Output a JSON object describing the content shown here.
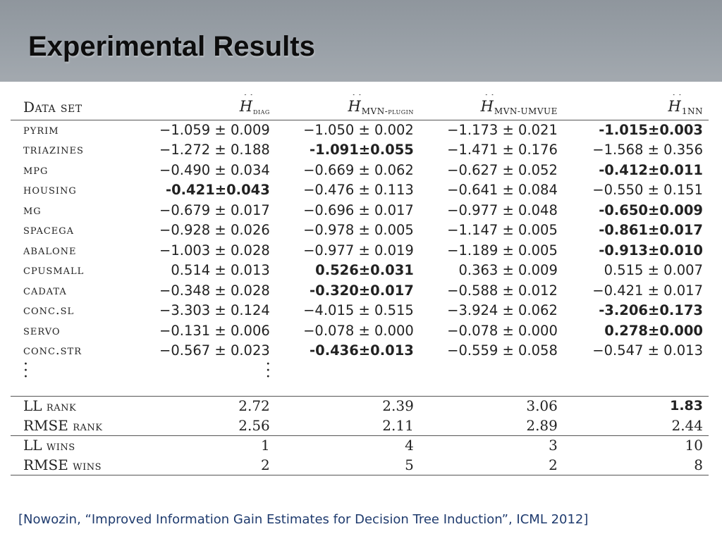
{
  "slide": {
    "title": "Experimental Results",
    "citation": "[Nowozin, “Improved Information Gain Estimates for Decision Tree Induction”, ICML 2012]"
  },
  "table": {
    "header": {
      "dataset": "Data set",
      "cols": [
        {
          "symbol": "H",
          "sub": "diag"
        },
        {
          "symbol": "H",
          "sub": "MVN-plugin"
        },
        {
          "symbol": "H",
          "sub": "MVN-UMVUE"
        },
        {
          "symbol": "H",
          "sub": "1NN"
        }
      ]
    },
    "rows": [
      {
        "name": "pyrim",
        "cells": [
          {
            "v": "−1.059 ± 0.009",
            "bold": false
          },
          {
            "v": "−1.050 ± 0.002",
            "bold": false
          },
          {
            "v": "−1.173 ± 0.021",
            "bold": false
          },
          {
            "v": "-1.015±0.003",
            "bold": true
          }
        ]
      },
      {
        "name": "triazines",
        "cells": [
          {
            "v": "−1.272 ± 0.188",
            "bold": false
          },
          {
            "v": "-1.091±0.055",
            "bold": true
          },
          {
            "v": "−1.471 ± 0.176",
            "bold": false
          },
          {
            "v": "−1.568 ± 0.356",
            "bold": false
          }
        ]
      },
      {
        "name": "mpg",
        "cells": [
          {
            "v": "−0.490 ± 0.034",
            "bold": false
          },
          {
            "v": "−0.669 ± 0.062",
            "bold": false
          },
          {
            "v": "−0.627 ± 0.052",
            "bold": false
          },
          {
            "v": "-0.412±0.011",
            "bold": true
          }
        ]
      },
      {
        "name": "housing",
        "cells": [
          {
            "v": "-0.421±0.043",
            "bold": true
          },
          {
            "v": "−0.476 ± 0.113",
            "bold": false
          },
          {
            "v": "−0.641 ± 0.084",
            "bold": false
          },
          {
            "v": "−0.550 ± 0.151",
            "bold": false
          }
        ]
      },
      {
        "name": "mg",
        "cells": [
          {
            "v": "−0.679 ± 0.017",
            "bold": false
          },
          {
            "v": "−0.696 ± 0.017",
            "bold": false
          },
          {
            "v": "−0.977 ± 0.048",
            "bold": false
          },
          {
            "v": "-0.650±0.009",
            "bold": true
          }
        ]
      },
      {
        "name": "spacega",
        "cells": [
          {
            "v": "−0.928 ± 0.026",
            "bold": false
          },
          {
            "v": "−0.978 ± 0.005",
            "bold": false
          },
          {
            "v": "−1.147 ± 0.005",
            "bold": false
          },
          {
            "v": "-0.861±0.017",
            "bold": true
          }
        ]
      },
      {
        "name": "abalone",
        "cells": [
          {
            "v": "−1.003 ± 0.028",
            "bold": false
          },
          {
            "v": "−0.977 ± 0.019",
            "bold": false
          },
          {
            "v": "−1.189 ± 0.005",
            "bold": false
          },
          {
            "v": "-0.913±0.010",
            "bold": true
          }
        ]
      },
      {
        "name": "cpusmall",
        "cells": [
          {
            "v": "0.514 ± 0.013",
            "bold": false
          },
          {
            "v": "0.526±0.031",
            "bold": true
          },
          {
            "v": "0.363 ± 0.009",
            "bold": false
          },
          {
            "v": "0.515 ± 0.007",
            "bold": false
          }
        ]
      },
      {
        "name": "cadata",
        "cells": [
          {
            "v": "−0.348 ± 0.028",
            "bold": false
          },
          {
            "v": "-0.320±0.017",
            "bold": true
          },
          {
            "v": "−0.588 ± 0.012",
            "bold": false
          },
          {
            "v": "−0.421 ± 0.017",
            "bold": false
          }
        ]
      },
      {
        "name": "conc.sl",
        "cells": [
          {
            "v": "−3.303 ± 0.124",
            "bold": false
          },
          {
            "v": "−4.015 ± 0.515",
            "bold": false
          },
          {
            "v": "−3.924 ± 0.062",
            "bold": false
          },
          {
            "v": "-3.206±0.173",
            "bold": true
          }
        ]
      },
      {
        "name": "servo",
        "cells": [
          {
            "v": "−0.131 ± 0.006",
            "bold": false
          },
          {
            "v": "−0.078 ± 0.000",
            "bold": false
          },
          {
            "v": "−0.078 ± 0.000",
            "bold": false
          },
          {
            "v": "0.278±0.000",
            "bold": true
          }
        ]
      },
      {
        "name": "conc.str",
        "cells": [
          {
            "v": "−0.567 ± 0.023",
            "bold": false
          },
          {
            "v": "-0.436±0.013",
            "bold": true
          },
          {
            "v": "−0.559 ± 0.058",
            "bold": false
          },
          {
            "v": "−0.547 ± 0.013",
            "bold": false
          }
        ]
      }
    ],
    "rank": [
      {
        "label": "LL",
        "suffix": "rank",
        "values": [
          "2.72",
          "2.39",
          "3.06",
          "1.83"
        ],
        "bold_index": 3
      },
      {
        "label": "RMSE",
        "suffix": "rank",
        "values": [
          "2.56",
          "2.11",
          "2.89",
          "2.44"
        ],
        "bold_index": -1
      }
    ],
    "wins": [
      {
        "label": "LL",
        "suffix": "wins",
        "values": [
          "1",
          "4",
          "3",
          "10"
        ]
      },
      {
        "label": "RMSE",
        "suffix": "wins",
        "values": [
          "2",
          "5",
          "2",
          "8"
        ]
      }
    ]
  }
}
